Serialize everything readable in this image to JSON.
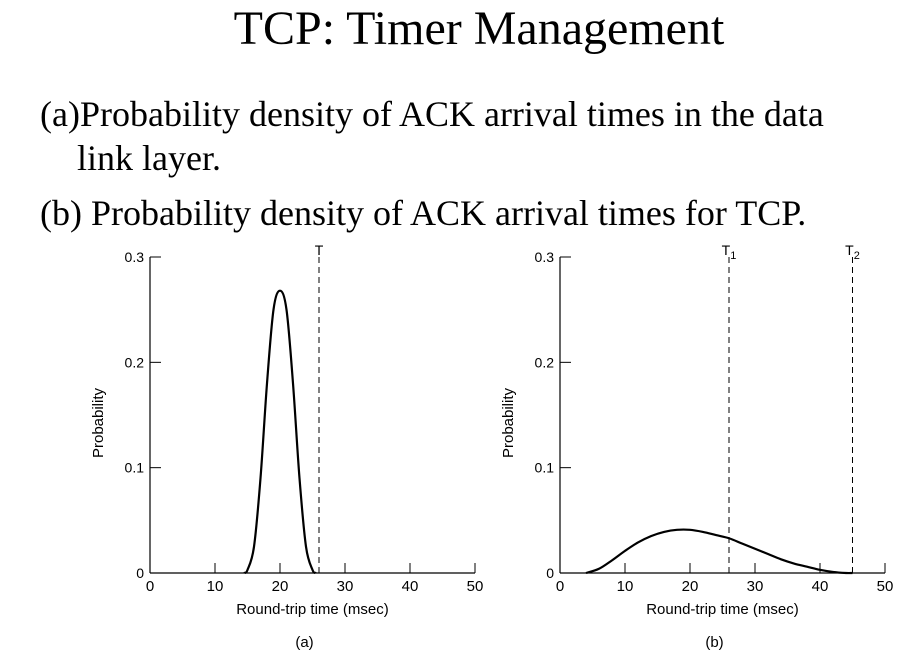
{
  "slide": {
    "title": "TCP: Timer Management",
    "bullets": {
      "a_label": "(a)",
      "a_text_line1": "Probability density of ACK arrival times in the data",
      "a_text_line2": "link layer.",
      "b_label": "(b)",
      "b_text": "Probability density of  ACK arrival times for TCP."
    }
  },
  "chart_data": [
    {
      "type": "line",
      "caption": "(a)",
      "xlabel": "Round-trip time (msec)",
      "ylabel": "Probability",
      "xlim": [
        0,
        50
      ],
      "ylim": [
        0,
        0.3
      ],
      "x_ticks": [
        "0",
        "10",
        "20",
        "30",
        "40",
        "50"
      ],
      "y_ticks": [
        "0",
        "0.1",
        "0.2",
        "0.3"
      ],
      "markers": [
        {
          "label": "T",
          "sub": "",
          "x": 26
        }
      ],
      "series": [
        {
          "x": [
            14.5,
            15,
            16,
            17,
            18,
            19,
            20,
            21,
            22,
            23,
            24,
            25,
            25.5
          ],
          "y": [
            0.0,
            0.003,
            0.025,
            0.09,
            0.18,
            0.25,
            0.268,
            0.25,
            0.18,
            0.09,
            0.025,
            0.003,
            0.0
          ]
        }
      ]
    },
    {
      "type": "line",
      "caption": "(b)",
      "xlabel": "Round-trip time (msec)",
      "ylabel": "Probability",
      "xlim": [
        0,
        50
      ],
      "ylim": [
        0,
        0.3
      ],
      "x_ticks": [
        "0",
        "10",
        "20",
        "30",
        "40",
        "50"
      ],
      "y_ticks": [
        "0",
        "0.1",
        "0.2",
        "0.3"
      ],
      "markers": [
        {
          "label": "T",
          "sub": "1",
          "x": 26
        },
        {
          "label": "T",
          "sub": "2",
          "x": 45
        }
      ],
      "series": [
        {
          "x": [
            4,
            6,
            8,
            10,
            12,
            14,
            16,
            18,
            20,
            22,
            24,
            26,
            28,
            30,
            32,
            34,
            36,
            38,
            40,
            42,
            44,
            45
          ],
          "y": [
            0.0,
            0.004,
            0.012,
            0.021,
            0.029,
            0.035,
            0.039,
            0.041,
            0.041,
            0.039,
            0.036,
            0.033,
            0.028,
            0.023,
            0.018,
            0.013,
            0.009,
            0.006,
            0.003,
            0.001,
            0.0,
            0.0
          ]
        }
      ]
    }
  ]
}
